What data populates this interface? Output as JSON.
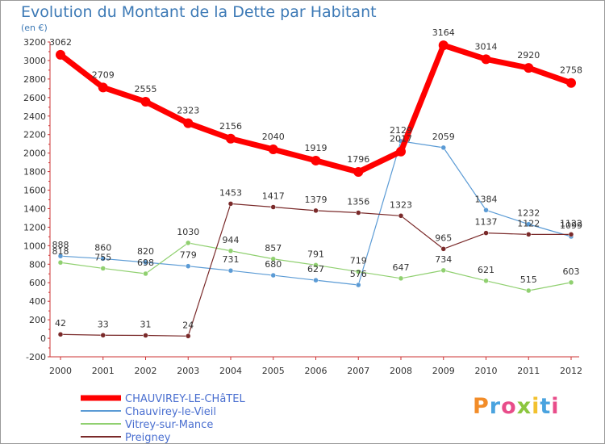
{
  "title": "Evolution du Montant de la Dette par Habitant",
  "subtitle": "(en €)",
  "logo_text": "Proxiti",
  "chart_data": {
    "type": "line",
    "title": "Evolution du Montant de la Dette par Habitant",
    "ylabel": "(en €)",
    "xlabel": "",
    "ylim": [
      -200,
      3200
    ],
    "yticks": [
      -200,
      0,
      200,
      400,
      600,
      800,
      1000,
      1200,
      1400,
      1600,
      1800,
      2000,
      2200,
      2400,
      2600,
      2800,
      3000,
      3200
    ],
    "grid": false,
    "legend_position": "bottom-left",
    "x": [
      "2000",
      "2001",
      "2002",
      "2003",
      "2004",
      "2005",
      "2006",
      "2007",
      "2008",
      "2009",
      "2010",
      "2011",
      "2012"
    ],
    "series": [
      {
        "name": "CHAUVIREY-LE-CHâTEL",
        "color": "#ff0000",
        "values": [
          3062,
          2709,
          2555,
          2323,
          2156,
          2040,
          1919,
          1796,
          2017,
          3164,
          3014,
          2920,
          2758
        ],
        "labels": [
          "3062",
          "2709",
          "2555",
          "2323",
          "2156",
          "2040",
          "1919",
          "1796",
          "2017",
          "3164",
          "3014",
          "2920",
          "2758"
        ]
      },
      {
        "name": "Chauvirey-le-Vieil",
        "color": "#5b9bd5",
        "values": [
          888,
          860,
          820,
          779,
          731,
          680,
          627,
          576,
          2129,
          2059,
          1384,
          1232,
          1099
        ],
        "labels": [
          "888",
          "860",
          "820",
          "779",
          "731",
          "680",
          "627",
          "576",
          "2129",
          "2059",
          "1384",
          "1232",
          "1099"
        ]
      },
      {
        "name": "Vitrey-sur-Mance",
        "color": "#90d070",
        "values": [
          818,
          755,
          698,
          1030,
          944,
          857,
          791,
          719,
          647,
          734,
          621,
          515,
          603
        ],
        "labels": [
          "818",
          "755",
          "698",
          "1030",
          "944",
          "857",
          "791",
          "719",
          "647",
          "734",
          "621",
          "515",
          "603"
        ]
      },
      {
        "name": "Preigney",
        "color": "#7a2a2a",
        "values": [
          42,
          33,
          31,
          24,
          1453,
          1417,
          1379,
          1356,
          1323,
          965,
          1137,
          1122,
          1122
        ],
        "labels": [
          "42",
          "33",
          "31",
          "24",
          "1453",
          "1417",
          "1379",
          "1356",
          "1323",
          "965",
          "1137",
          "1122",
          "1122"
        ]
      }
    ]
  }
}
